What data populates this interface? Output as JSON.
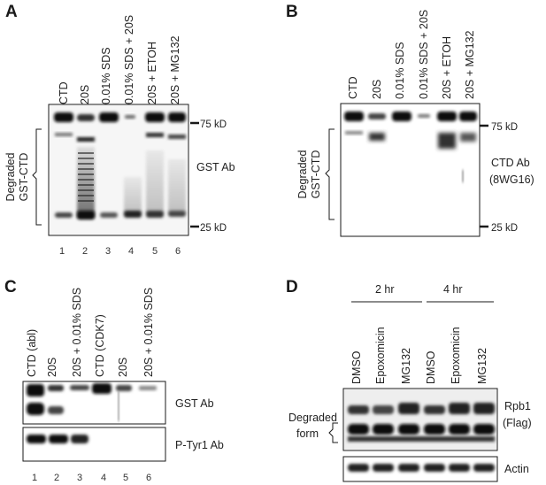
{
  "panels": {
    "A": {
      "letter": "A",
      "lanes": [
        "CTD",
        "20S",
        "0.01% SDS",
        "0.01% SDS + 20S",
        "20S + ETOH",
        "20S + MG132"
      ],
      "numbers": [
        "1",
        "2",
        "3",
        "4",
        "5",
        "6"
      ],
      "antibody": "GST Ab",
      "mw_top": "75 kD",
      "mw_bottom": "25 kD",
      "bracket_label_1": "Degraded",
      "bracket_label_2": "GST-CTD"
    },
    "B": {
      "letter": "B",
      "lanes": [
        "CTD",
        "20S",
        "0.01% SDS",
        "0.01% SDS + 20S",
        "20S + ETOH",
        "20S + MG132"
      ],
      "antibody_1": "CTD Ab",
      "antibody_2": "(8WG16)",
      "mw_top": "75 kD",
      "mw_bottom": "25 kD",
      "bracket_label_1": "Degraded",
      "bracket_label_2": "GST-CTD"
    },
    "C": {
      "letter": "C",
      "lanes": [
        "CTD (abl)",
        "20S",
        "20S + 0.01% SDS",
        "CTD (CDK7)",
        "20S",
        "20S + 0.01% SDS"
      ],
      "numbers": [
        "1",
        "2",
        "3",
        "4",
        "5",
        "6"
      ],
      "antibody_top": "GST Ab",
      "antibody_bottom": "P-Tyr1 Ab"
    },
    "D": {
      "letter": "D",
      "time_1": "2 hr",
      "time_2": "4 hr",
      "lanes": [
        "DMSO",
        "Epoxomicin",
        "MG132",
        "DMSO",
        "Epoxomicin",
        "MG132"
      ],
      "antibody_1": "Rpb1",
      "antibody_2": "(Flag)",
      "bracket_label_1": "Degraded",
      "bracket_label_2": "form",
      "loading_control": "Actin"
    }
  }
}
